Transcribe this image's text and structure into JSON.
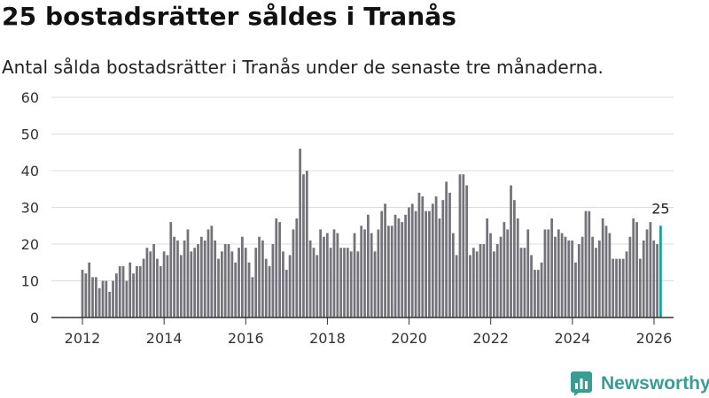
{
  "title": "25 bostadsrätter såldes i Tranås",
  "subtitle": "Antal sålda bostadsrätter i Tranås under de senaste tre månaderna.",
  "brand": {
    "name": "Newsworthy",
    "color": "#3a9d94",
    "icon": "newsworthy-logo-icon"
  },
  "colors": {
    "bar": "#74737a",
    "highlight": "#17a398",
    "grid": "#dcdcdc",
    "axis": "#333333"
  },
  "chart_data": {
    "type": "bar",
    "title": "25 bostadsrätter såldes i Tranås",
    "xlabel": "",
    "ylabel": "",
    "ylim": [
      0,
      60
    ],
    "yticks": [
      0,
      10,
      20,
      30,
      40,
      50,
      60
    ],
    "xlim": [
      2012.0,
      2026.2
    ],
    "xticks": [
      2012,
      2014,
      2016,
      2018,
      2020,
      2022,
      2024,
      2026
    ],
    "x_start": 2012.0,
    "step": 0.0833,
    "values": [
      13,
      12,
      15,
      11,
      11,
      8,
      10,
      10,
      7,
      10,
      12,
      14,
      14,
      10,
      15,
      12,
      14,
      14,
      16,
      19,
      18,
      20,
      16,
      14,
      18,
      17,
      26,
      22,
      21,
      17,
      21,
      24,
      18,
      19,
      20,
      22,
      21,
      24,
      25,
      21,
      16,
      18,
      20,
      20,
      18,
      15,
      19,
      22,
      19,
      15,
      11,
      19,
      22,
      21,
      16,
      14,
      20,
      27,
      26,
      18,
      13,
      17,
      24,
      27,
      46,
      39,
      40,
      21,
      19,
      17,
      24,
      22,
      23,
      19,
      24,
      23,
      19,
      19,
      19,
      18,
      23,
      18,
      25,
      24,
      28,
      23,
      18,
      24,
      29,
      31,
      25,
      25,
      28,
      27,
      26,
      28,
      30,
      31,
      29,
      34,
      33,
      29,
      29,
      31,
      33,
      27,
      32,
      37,
      34,
      23,
      17,
      39,
      39,
      36,
      17,
      19,
      18,
      20,
      20,
      27,
      23,
      18,
      20,
      22,
      26,
      24,
      36,
      32,
      27,
      19,
      19,
      24,
      17,
      13,
      13,
      15,
      24,
      24,
      27,
      22,
      24,
      23,
      22,
      21,
      21,
      15,
      20,
      22,
      29,
      29,
      22,
      19,
      21,
      27,
      25,
      23,
      16,
      16,
      16,
      16,
      18,
      22,
      27,
      26,
      16,
      21,
      24,
      26,
      21,
      20,
      25
    ],
    "highlight": {
      "index": 170,
      "value": 25,
      "label": "25"
    }
  }
}
